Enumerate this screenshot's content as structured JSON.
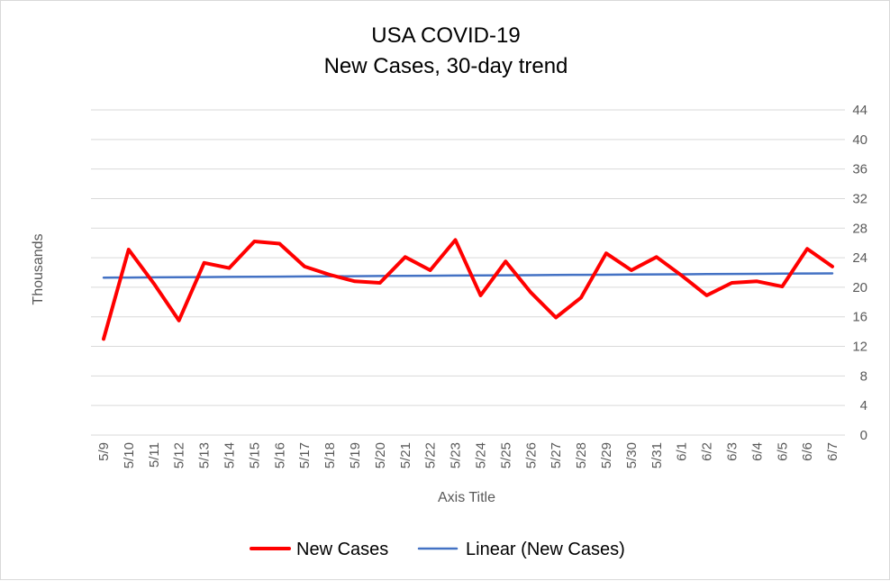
{
  "chart_data": {
    "type": "line",
    "title": "USA COVID-19",
    "subtitle": "New Cases, 30-day trend",
    "xlabel": "Axis Title",
    "ylabel": "Thousands",
    "categories": [
      "5/9",
      "5/10",
      "5/11",
      "5/12",
      "5/13",
      "5/14",
      "5/15",
      "5/16",
      "5/17",
      "5/18",
      "5/19",
      "5/20",
      "5/21",
      "5/22",
      "5/23",
      "5/24",
      "5/25",
      "5/26",
      "5/27",
      "5/28",
      "5/29",
      "5/30",
      "5/31",
      "6/1",
      "6/2",
      "6/3",
      "6/4",
      "6/5",
      "6/6",
      "6/7"
    ],
    "yticks": [
      "0",
      "4",
      "8",
      "12",
      "16",
      "20",
      "24",
      "28",
      "32",
      "36",
      "40",
      "44"
    ],
    "ylim": [
      0,
      44
    ],
    "y_axis_side": "right",
    "grid": true,
    "legend_position": "bottom",
    "series": [
      {
        "name": "New Cases",
        "color": "#ff0000",
        "values": [
          13.0,
          25.1,
          20.5,
          15.5,
          23.3,
          22.6,
          26.2,
          25.9,
          22.8,
          21.7,
          20.8,
          20.6,
          24.1,
          22.3,
          26.4,
          18.9,
          23.5,
          19.3,
          15.9,
          18.6,
          24.6,
          22.3,
          24.1,
          21.6,
          18.9,
          20.6,
          20.8,
          20.1,
          25.2,
          22.8
        ]
      },
      {
        "name": "Linear (New Cases)",
        "color": "#4472c4",
        "values": [
          21.3,
          21.32,
          21.34,
          21.36,
          21.38,
          21.4,
          21.42,
          21.44,
          21.46,
          21.48,
          21.5,
          21.52,
          21.54,
          21.56,
          21.58,
          21.6,
          21.62,
          21.64,
          21.66,
          21.68,
          21.7,
          21.72,
          21.74,
          21.76,
          21.78,
          21.8,
          21.82,
          21.84,
          21.86,
          21.88
        ]
      }
    ]
  }
}
